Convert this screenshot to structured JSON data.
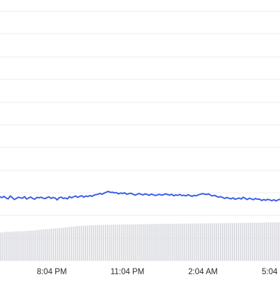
{
  "colors": {
    "background": "#ffffff",
    "grid": "#ececec",
    "line": "#3a5ee8",
    "volume_bar": "#d7d8de",
    "axis_text": "#2b2b2b"
  },
  "chart_data": {
    "type": "line",
    "title": "",
    "xlabel": "",
    "ylabel": "",
    "grid": true,
    "x_tick_labels": [
      "8:04 PM",
      "11:04 PM",
      "2:04 AM",
      "5:04"
    ],
    "ylim": [
      0,
      12
    ],
    "volume_ylim": [
      0,
      10
    ],
    "series": [
      {
        "type": "line",
        "values": [
          3.08,
          3.04,
          3.1,
          3.02,
          2.98,
          3.12,
          3.04,
          2.95,
          3.0,
          3.06,
          3.03,
          3.01,
          3.09,
          2.97,
          3.02,
          3.07,
          3.0,
          2.96,
          3.05,
          3.03,
          3.06,
          3.02,
          2.99,
          3.04,
          3.08,
          3.0,
          3.05,
          3.02,
          2.93,
          3.04,
          3.06,
          3.0,
          3.02,
          2.98,
          3.09,
          3.03,
          3.08,
          3.12,
          3.05,
          3.1,
          3.13,
          3.06,
          3.12,
          3.09,
          3.14,
          3.1,
          3.16,
          3.18,
          3.21,
          3.24,
          3.2,
          3.26,
          3.3,
          3.34,
          3.29,
          3.3,
          3.27,
          3.28,
          3.22,
          3.26,
          3.24,
          3.27,
          3.2,
          3.23,
          3.25,
          3.21,
          3.16,
          3.19,
          3.24,
          3.2,
          3.17,
          3.22,
          3.19,
          3.15,
          3.21,
          3.18,
          3.14,
          3.17,
          3.2,
          3.16,
          3.18,
          3.22,
          3.19,
          3.16,
          3.2,
          3.13,
          3.17,
          3.15,
          3.19,
          3.14,
          3.16,
          3.12,
          3.18,
          3.14,
          3.1,
          3.15,
          3.13,
          3.17,
          3.2,
          3.23,
          3.21,
          3.19,
          3.22,
          3.16,
          3.12,
          3.15,
          3.1,
          3.06,
          3.09,
          3.04,
          3.0,
          3.05,
          3.01,
          2.98,
          3.03,
          2.96,
          2.99,
          3.02,
          2.97,
          3.06,
          3.0,
          2.95,
          3.01,
          2.98,
          2.94,
          3.0,
          2.96,
          2.97,
          2.9,
          2.95,
          2.91,
          2.96,
          2.93,
          2.89,
          2.94,
          2.88,
          2.93,
          2.96
        ]
      },
      {
        "type": "bar",
        "values": [
          2.35,
          2.35,
          2.4,
          2.4,
          2.38,
          2.42,
          2.4,
          2.43,
          2.42,
          2.45,
          2.44,
          2.45,
          2.47,
          2.46,
          2.48,
          2.5,
          2.5,
          2.52,
          2.55,
          2.56,
          2.58,
          2.6,
          2.62,
          2.62,
          2.64,
          2.66,
          2.67,
          2.68,
          2.7,
          2.72,
          2.72,
          2.74,
          2.76,
          2.78,
          2.8,
          2.82,
          2.82,
          2.85,
          2.87,
          2.88,
          2.88,
          2.9,
          2.9,
          2.92,
          2.93,
          2.93,
          2.94,
          2.95,
          2.95,
          2.96,
          2.96,
          2.97,
          2.97,
          2.98,
          2.98,
          2.98,
          2.99,
          2.99,
          3.0,
          3.0,
          3.0,
          3.0,
          3.01,
          3.01,
          3.01,
          3.01,
          3.02,
          3.02,
          3.02,
          3.03,
          3.03,
          3.03,
          3.03,
          3.04,
          3.04,
          3.04,
          3.04,
          3.05,
          3.05,
          3.05,
          3.05,
          3.05,
          3.06,
          3.06,
          3.06,
          3.06,
          3.06,
          3.07,
          3.07,
          3.07,
          3.07,
          3.07,
          3.08,
          3.08,
          3.08,
          3.08,
          3.08,
          3.09,
          3.09,
          3.09,
          3.09,
          3.09,
          3.1,
          3.1,
          3.1,
          3.1,
          3.1,
          3.1,
          3.11,
          3.11,
          3.11,
          3.11,
          3.11,
          3.12,
          3.12,
          3.12,
          3.12,
          3.12,
          3.12,
          3.13,
          3.13,
          3.13,
          3.14,
          3.14,
          3.14,
          3.14,
          3.15,
          3.15,
          3.15,
          3.15,
          3.16,
          3.16,
          3.16,
          3.17,
          3.17,
          3.17,
          3.17,
          3.18,
          3.18
        ]
      }
    ]
  }
}
